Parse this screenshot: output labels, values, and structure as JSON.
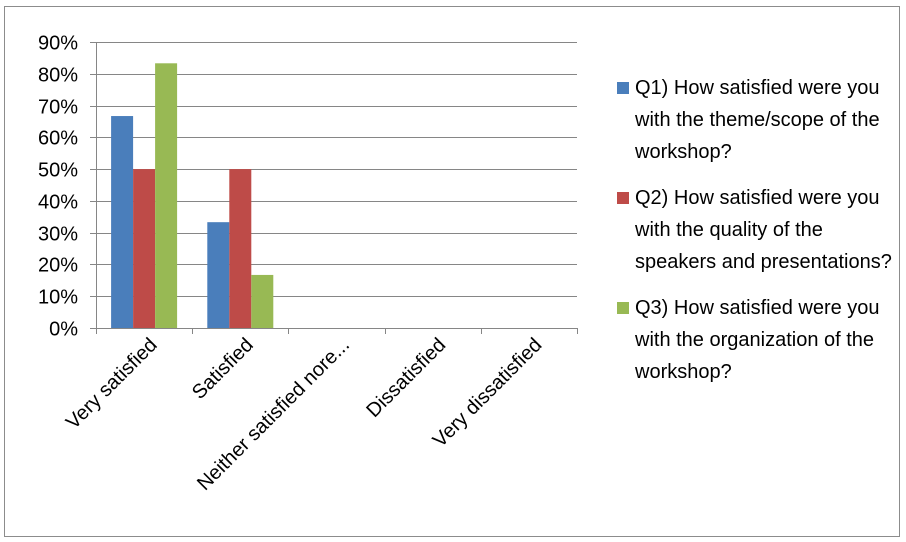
{
  "chart_data": {
    "type": "bar",
    "categories": [
      "Very satisfied",
      "Satisfied",
      "Neither satisfied nore...",
      "Dissatisfied",
      "Very dissatisfied"
    ],
    "series": [
      {
        "name": "Q1) How satisfied were you with the theme/scope of the workshop?",
        "values": [
          66.7,
          33.3,
          0,
          0,
          0
        ],
        "color": "#4a7ebb"
      },
      {
        "name": "Q2) How satisfied were you with the quality of the speakers and presentations?",
        "values": [
          50,
          50,
          0,
          0,
          0
        ],
        "color": "#be4b48"
      },
      {
        "name": "Q3) How satisfied were you with the organization of the workshop?",
        "values": [
          83.3,
          16.7,
          0,
          0,
          0
        ],
        "color": "#98b954"
      }
    ],
    "title": "",
    "xlabel": "",
    "ylabel": "",
    "ylim": [
      0,
      90
    ],
    "yticks": [
      "0%",
      "10%",
      "20%",
      "30%",
      "40%",
      "50%",
      "60%",
      "70%",
      "80%",
      "90%"
    ],
    "grid": true,
    "legend_position": "right"
  }
}
